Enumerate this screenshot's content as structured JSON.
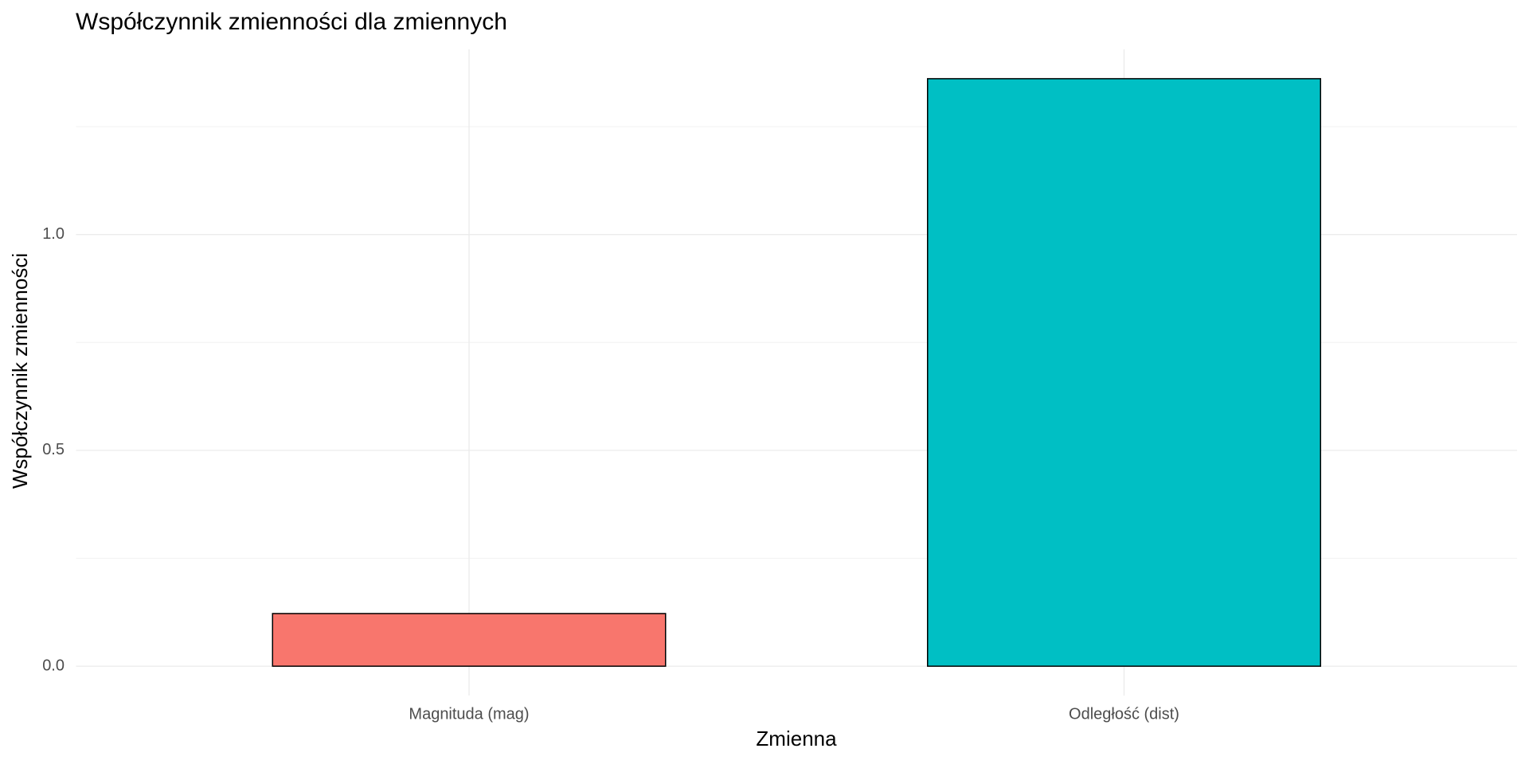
{
  "chart_data": {
    "type": "bar",
    "title": "Współczynnik zmienności dla zmiennych",
    "x_label": "Zmienna",
    "y_label": "Współczynnik zmienności",
    "categories": [
      "Magnituda (mag)",
      "Odległość (dist)"
    ],
    "values": [
      0.122,
      1.361
    ],
    "colors": [
      "#F8766D",
      "#00BFC4"
    ],
    "ylim": [
      -0.068,
      1.429
    ],
    "yticks": [
      {
        "value": 0,
        "label": "0.0"
      },
      0.5,
      {
        "value": 1,
        "label": "1.0"
      }
    ],
    "minor_yticks": [
      0.25,
      0.75,
      1.25
    ],
    "grid": true
  }
}
